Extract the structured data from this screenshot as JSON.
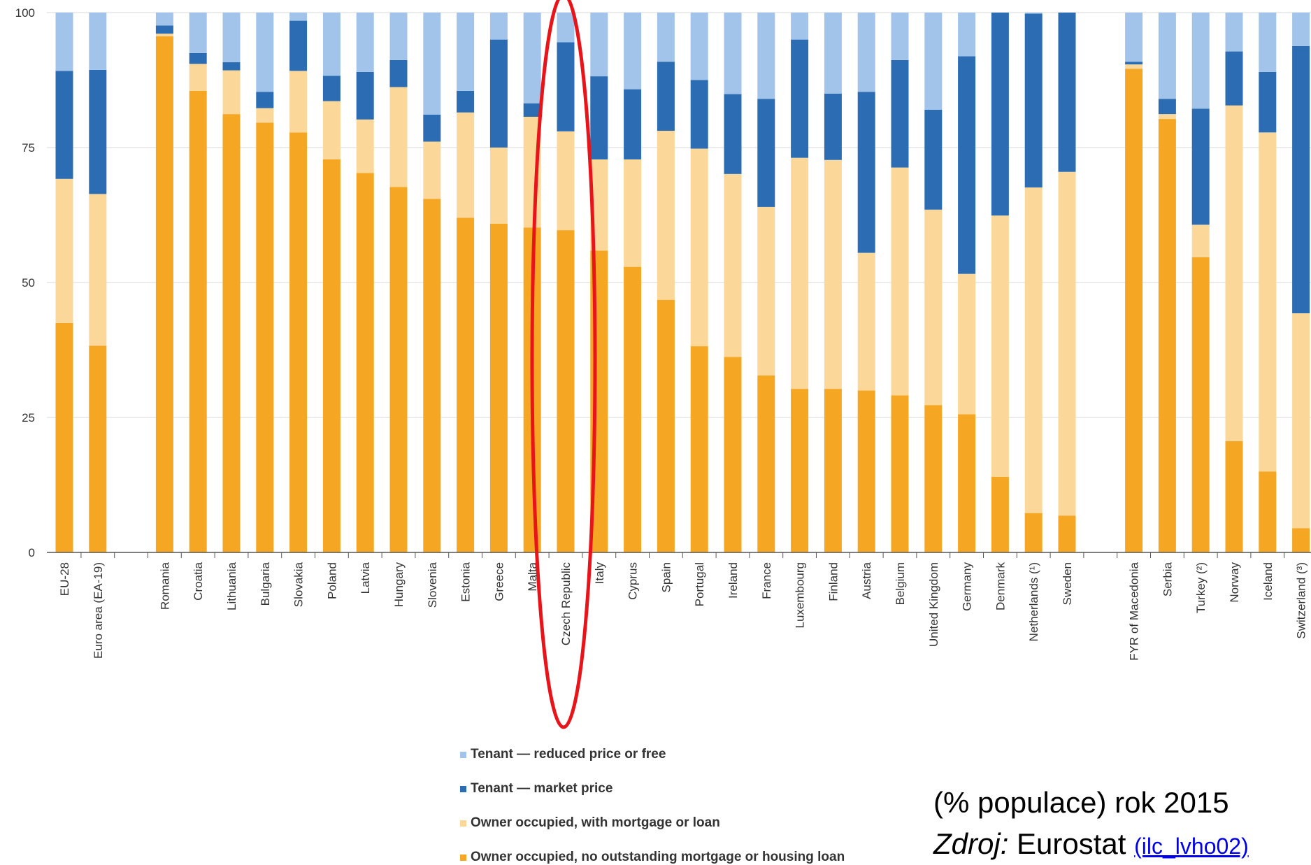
{
  "chart_data": {
    "type": "bar",
    "stacked": true,
    "ylim": [
      0,
      100
    ],
    "yticks": [
      0,
      25,
      50,
      75,
      100
    ],
    "grid": true,
    "legend_position": "bottom",
    "categories": [
      "EU-28",
      "Euro area (EA-19)",
      "",
      "Romania",
      "Croatia",
      "Lithuania",
      "Bulgaria",
      "Slovakia",
      "Poland",
      "Latvia",
      "Hungary",
      "Slovenia",
      "Estonia",
      "Greece",
      "Malta",
      "Czech Republic",
      "Italy",
      "Cyprus",
      "Spain",
      "Portugal",
      "Ireland",
      "France",
      "Luxembourg",
      "Finland",
      "Austria",
      "Belgium",
      "United Kingdom",
      "Germany",
      "Denmark",
      "Netherlands (¹)",
      "Sweden",
      "",
      "FYR of Macedonia",
      "Serbia",
      "Turkey (²)",
      "Norway",
      "Iceland",
      "Switzerland (³)"
    ],
    "series": [
      {
        "name": "Owner occupied, no outstanding mortgage or housing loan",
        "color": "#f5a623",
        "values": [
          42.5,
          38.3,
          null,
          95.6,
          85.5,
          81.2,
          79.6,
          77.8,
          72.8,
          70.3,
          67.7,
          65.5,
          62.0,
          60.9,
          60.2,
          59.7,
          55.9,
          52.9,
          46.8,
          38.2,
          36.2,
          32.8,
          30.3,
          30.3,
          30.0,
          29.1,
          27.3,
          25.6,
          14.0,
          7.3,
          6.8,
          null,
          89.6,
          80.3,
          54.7,
          20.6,
          15.0,
          4.5
        ]
      },
      {
        "name": "Owner occupied, with mortgage or loan",
        "color": "#fbd89a",
        "values": [
          26.7,
          28.1,
          null,
          0.5,
          5.0,
          8.1,
          2.7,
          11.4,
          10.8,
          9.9,
          18.5,
          10.6,
          19.5,
          14.1,
          20.5,
          18.3,
          16.9,
          19.9,
          31.3,
          36.6,
          33.9,
          31.2,
          42.8,
          42.4,
          25.5,
          42.2,
          36.2,
          26.0,
          48.4,
          60.3,
          63.7,
          null,
          0.8,
          0.9,
          6.0,
          62.2,
          62.8,
          39.8
        ]
      },
      {
        "name": "Tenant — market price",
        "color": "#2b6cb3",
        "values": [
          20.0,
          23.0,
          null,
          1.5,
          2.0,
          1.5,
          3.0,
          9.3,
          4.7,
          8.8,
          5.0,
          5.0,
          4.0,
          20.0,
          2.5,
          16.5,
          15.4,
          13.0,
          12.8,
          12.7,
          14.8,
          20.0,
          21.9,
          12.3,
          29.8,
          19.9,
          18.5,
          40.3,
          37.6,
          32.2,
          29.5,
          null,
          0.5,
          2.8,
          21.5,
          10.0,
          11.2,
          49.5
        ]
      },
      {
        "name": "Tenant — reduced price or free",
        "color": "#a3c4ea",
        "values": [
          10.8,
          10.6,
          null,
          2.4,
          7.5,
          9.2,
          14.7,
          1.5,
          11.7,
          11.0,
          8.8,
          18.9,
          14.5,
          5.0,
          16.8,
          5.5,
          11.8,
          14.2,
          9.1,
          12.5,
          15.1,
          16.0,
          5.0,
          15.0,
          14.7,
          8.8,
          18.0,
          8.1,
          0.0,
          0.2,
          0.0,
          null,
          9.1,
          16.0,
          17.8,
          7.2,
          11.0,
          6.2
        ]
      }
    ]
  },
  "annotation": {
    "note_line1": "(% populace)  rok 2015",
    "note_label": "Zdroj:",
    "note_source": " Eurostat ",
    "note_link": "(ilc_lvho02)"
  }
}
